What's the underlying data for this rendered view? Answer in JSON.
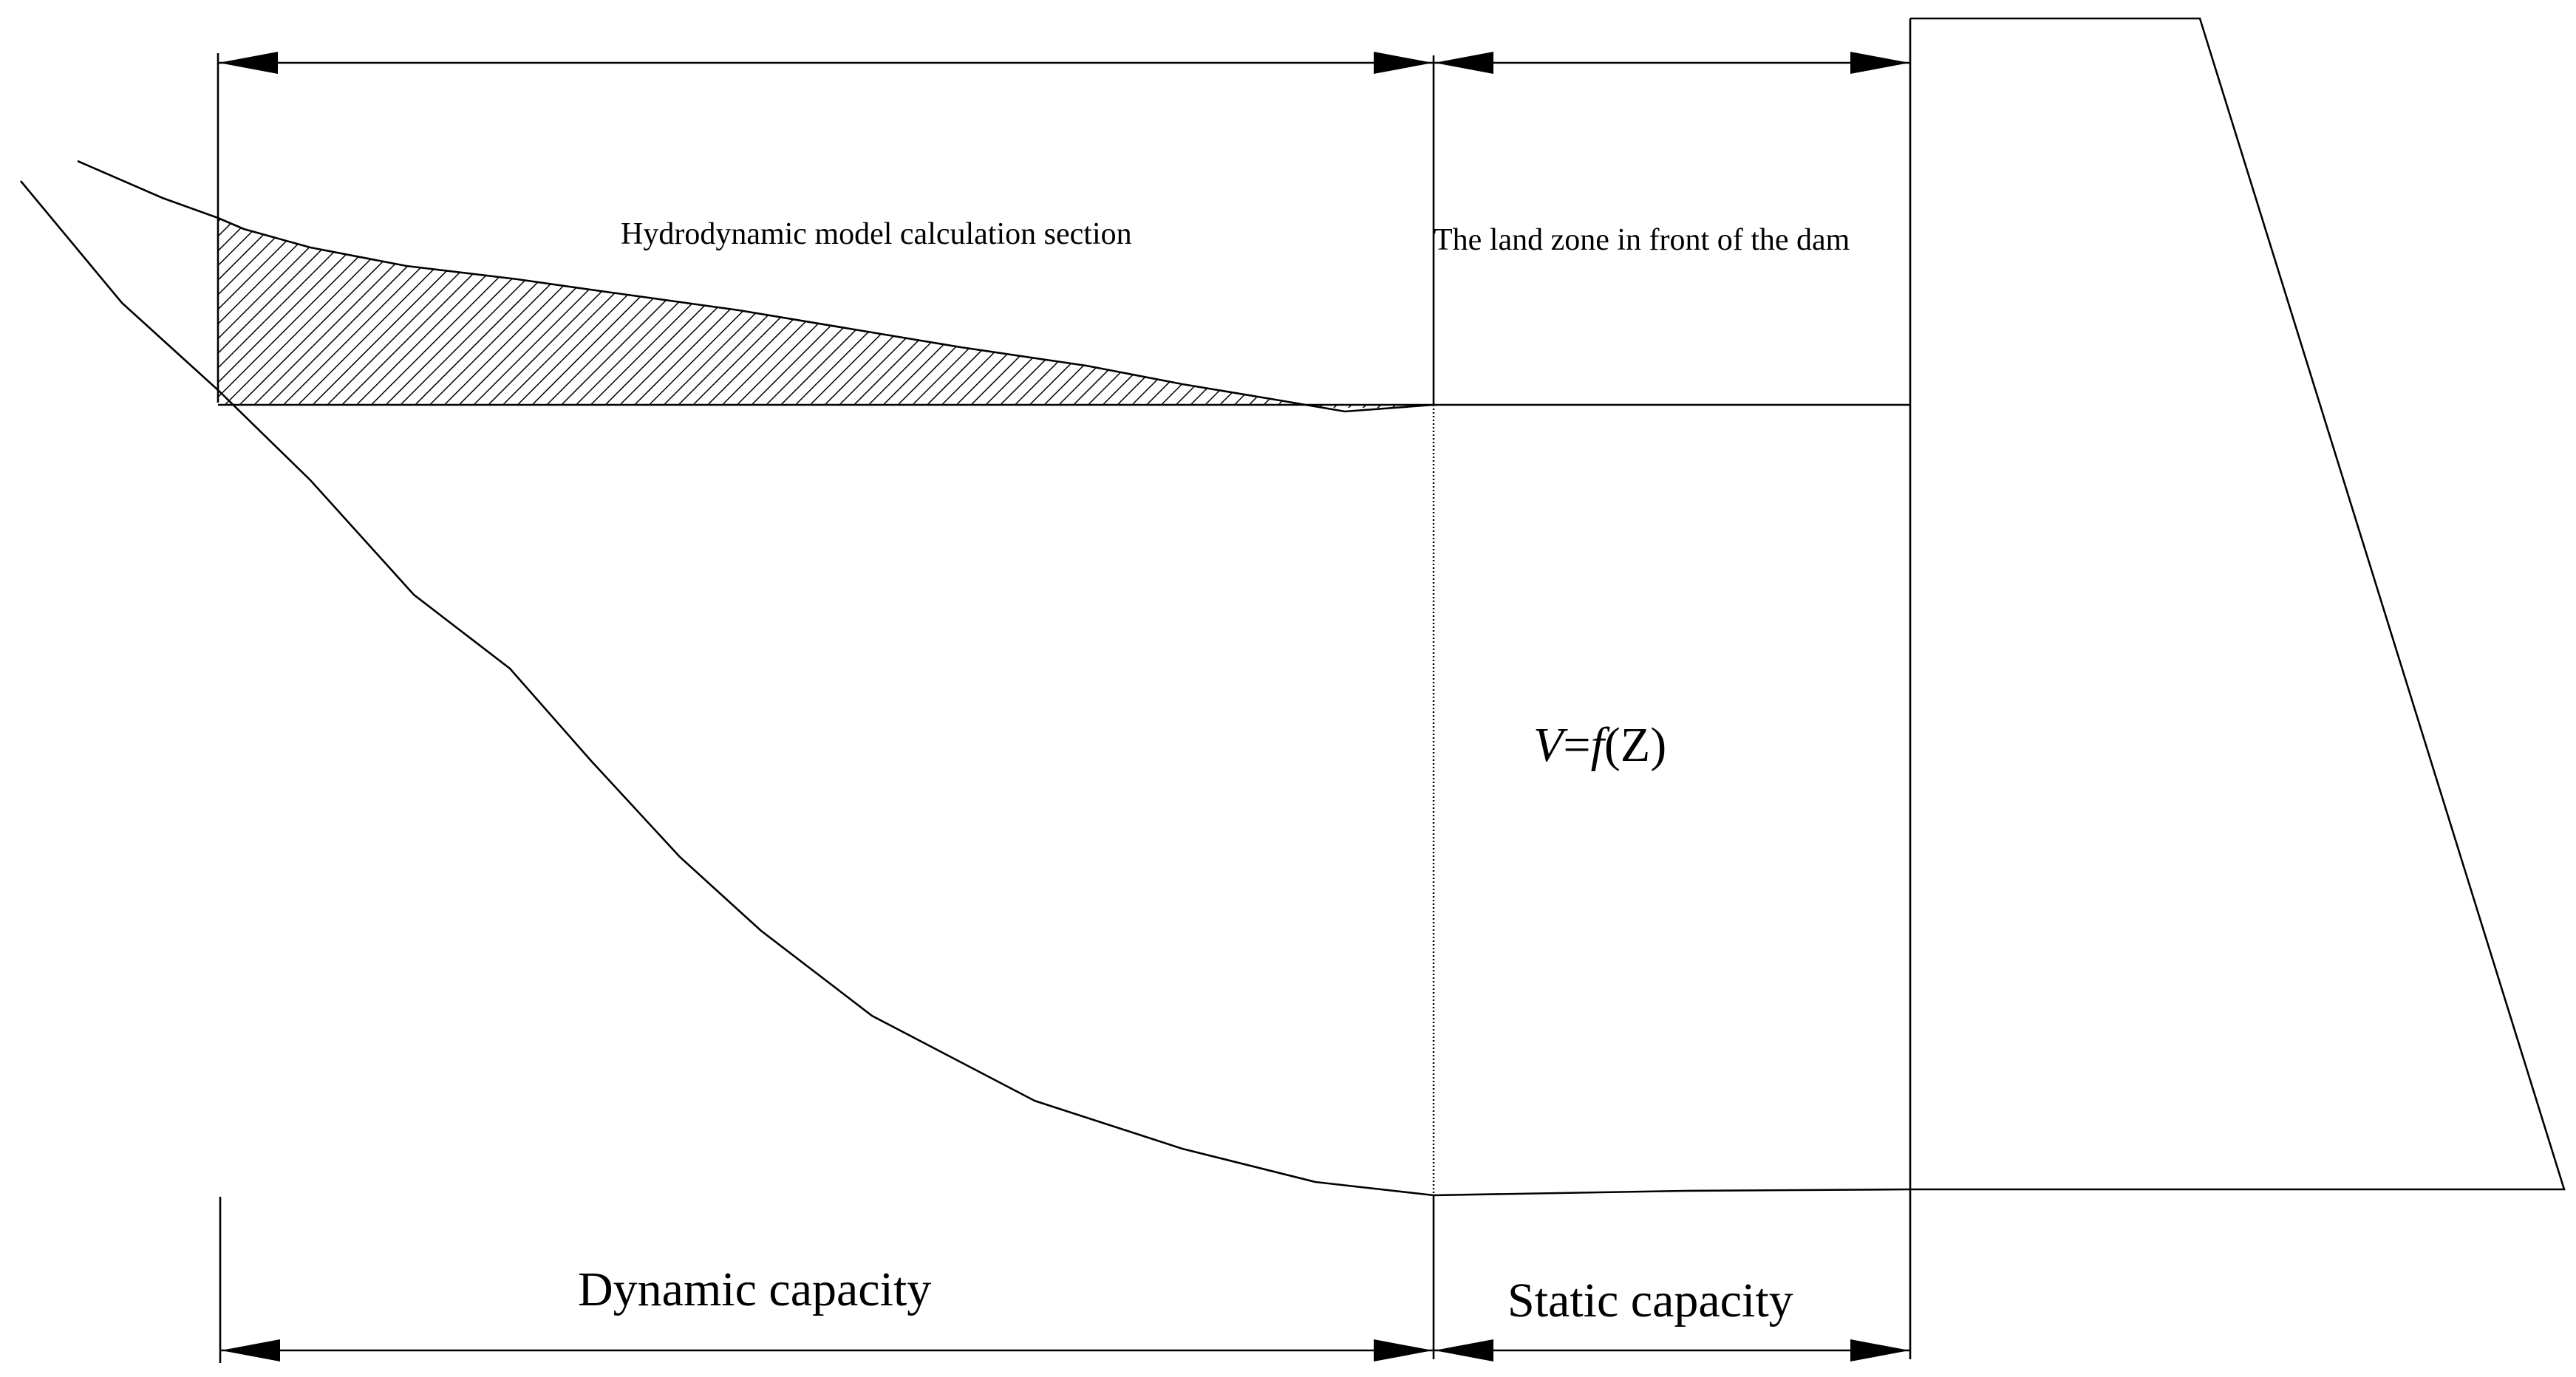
{
  "labels": {
    "hydrodynamic_section": "Hydrodynamic model calculation section",
    "land_zone": "The land zone in front of the dam",
    "dynamic_capacity": "Dynamic capacity",
    "static_capacity": "Static capacity",
    "formula": {
      "v": "V",
      "eq": "=",
      "f": "f",
      "arg": "(Z)"
    }
  },
  "colors": {
    "stroke": "#000000",
    "background": "#ffffff"
  }
}
